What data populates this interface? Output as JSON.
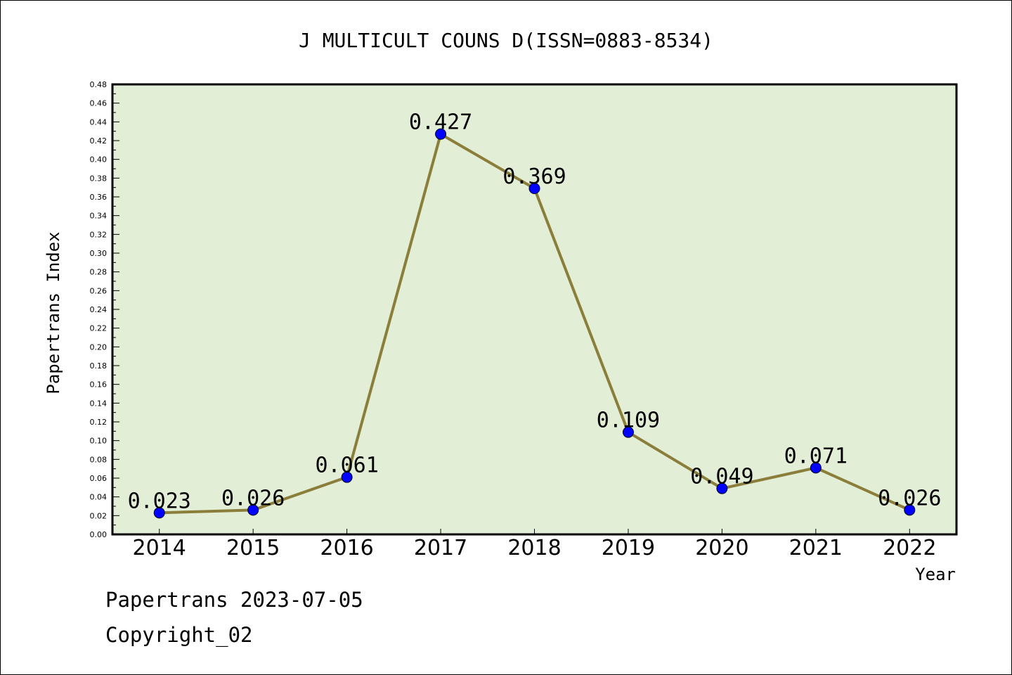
{
  "chart_data": {
    "type": "line",
    "title": "J MULTICULT COUNS D(ISSN=0883-8534)",
    "xlabel": "Year",
    "ylabel": "Papertrans Index",
    "categories": [
      "2014",
      "2015",
      "2016",
      "2017",
      "2018",
      "2019",
      "2020",
      "2021",
      "2022"
    ],
    "values": [
      0.023,
      0.026,
      0.061,
      0.427,
      0.369,
      0.109,
      0.049,
      0.071,
      0.026
    ],
    "data_labels": [
      "0.023",
      "0.026",
      "0.061",
      "0.427",
      "0.369",
      "0.109",
      "0.049",
      "0.071",
      "0.026"
    ],
    "ylim": [
      0,
      0.48
    ],
    "yticks": [
      "0.00",
      "0.02",
      "0.04",
      "0.06",
      "0.08",
      "0.10",
      "0.12",
      "0.14",
      "0.16",
      "0.18",
      "0.20",
      "0.22",
      "0.24",
      "0.26",
      "0.28",
      "0.30",
      "0.32",
      "0.34",
      "0.36",
      "0.38",
      "0.40",
      "0.42",
      "0.44",
      "0.46",
      "0.48"
    ],
    "grid": false,
    "legend": "none",
    "colors": {
      "plot_background": "#e2efd6",
      "line": "#8b7d3a",
      "marker": "#0000ff"
    }
  },
  "footer": {
    "line1": "Papertrans 2023-07-05",
    "line2": "Copyright_02"
  }
}
